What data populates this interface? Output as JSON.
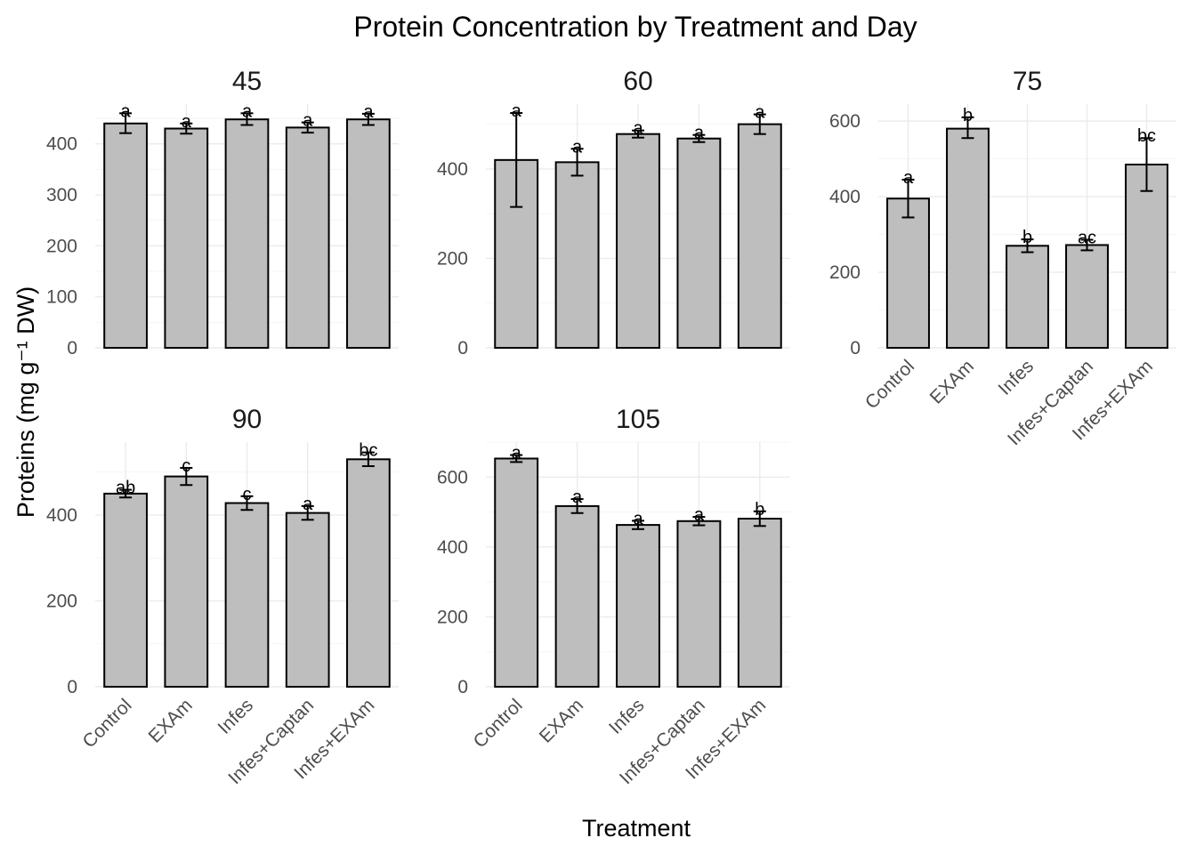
{
  "chart_data": {
    "type": "bar",
    "title": "Protein Concentration by Treatment and Day",
    "xlabel": "Treatment",
    "ylabel": "Proteins (mg g⁻¹ DW)",
    "bar_color": "#bebebe",
    "grid": true,
    "categories": [
      "Control",
      "EXAm",
      "Infes",
      "Infes+Captan",
      "Infes+EXAm"
    ],
    "facets": [
      {
        "day": "45",
        "yticks": [
          0,
          100,
          200,
          300,
          400
        ],
        "values": [
          440,
          430,
          448,
          432,
          448
        ],
        "err_low": [
          421,
          420,
          437,
          422,
          437
        ],
        "err_high": [
          460,
          440,
          460,
          442,
          459
        ],
        "letters": [
          "a",
          "a",
          "a",
          "a",
          "a"
        ]
      },
      {
        "day": "60",
        "yticks": [
          0,
          200,
          400
        ],
        "values": [
          420,
          415,
          478,
          468,
          500
        ],
        "err_low": [
          315,
          385,
          470,
          460,
          478
        ],
        "err_high": [
          525,
          445,
          486,
          476,
          522
        ],
        "letters": [
          "a",
          "a",
          "a",
          "a",
          "a"
        ]
      },
      {
        "day": "75",
        "yticks": [
          0,
          200,
          400,
          600
        ],
        "values": [
          395,
          580,
          270,
          272,
          485
        ],
        "err_low": [
          345,
          555,
          253,
          258,
          415
        ],
        "err_high": [
          445,
          610,
          287,
          286,
          555
        ],
        "letters": [
          "a",
          "b",
          "b",
          "ac",
          "bc"
        ]
      },
      {
        "day": "90",
        "yticks": [
          0,
          200,
          400
        ],
        "values": [
          450,
          490,
          428,
          405,
          530
        ],
        "err_low": [
          441,
          470,
          412,
          389,
          514
        ],
        "err_high": [
          459,
          510,
          444,
          421,
          546
        ],
        "letters": [
          "ab",
          "c",
          "c",
          "a",
          "bc"
        ]
      },
      {
        "day": "105",
        "yticks": [
          0,
          200,
          400,
          600
        ],
        "values": [
          653,
          517,
          463,
          474,
          481
        ],
        "err_low": [
          643,
          497,
          451,
          462,
          460
        ],
        "err_high": [
          663,
          537,
          475,
          486,
          502
        ],
        "letters": [
          "a",
          "a",
          "a",
          "a",
          "b"
        ]
      }
    ]
  }
}
